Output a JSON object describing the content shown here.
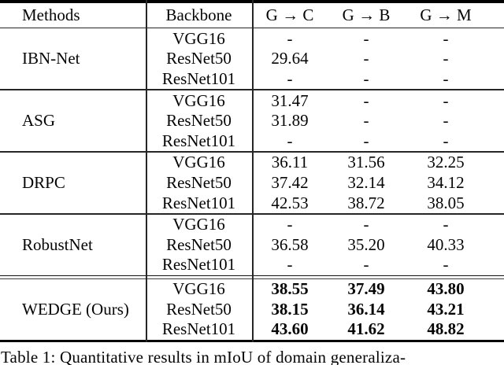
{
  "table": {
    "headers": {
      "methods": "Methods",
      "backbone": "Backbone",
      "cols": [
        "G → C",
        "G → B",
        "G → M"
      ]
    },
    "groups": [
      {
        "method": "IBN-Net",
        "bold_values": false,
        "rows": [
          {
            "backbone": "VGG16",
            "values": [
              "-",
              "-",
              "-"
            ]
          },
          {
            "backbone": "ResNet50",
            "values": [
              "29.64",
              "-",
              "-"
            ]
          },
          {
            "backbone": "ResNet101",
            "values": [
              "-",
              "-",
              "-"
            ]
          }
        ]
      },
      {
        "method": "ASG",
        "bold_values": false,
        "rows": [
          {
            "backbone": "VGG16",
            "values": [
              "31.47",
              "-",
              "-"
            ]
          },
          {
            "backbone": "ResNet50",
            "values": [
              "31.89",
              "-",
              "-"
            ]
          },
          {
            "backbone": "ResNet101",
            "values": [
              "-",
              "-",
              "-"
            ]
          }
        ]
      },
      {
        "method": "DRPC",
        "bold_values": false,
        "rows": [
          {
            "backbone": "VGG16",
            "values": [
              "36.11",
              "31.56",
              "32.25"
            ]
          },
          {
            "backbone": "ResNet50",
            "values": [
              "37.42",
              "32.14",
              "34.12"
            ]
          },
          {
            "backbone": "ResNet101",
            "values": [
              "42.53",
              "38.72",
              "38.05"
            ]
          }
        ]
      },
      {
        "method": "RobustNet",
        "bold_values": false,
        "rows": [
          {
            "backbone": "VGG16",
            "values": [
              "-",
              "-",
              "-"
            ]
          },
          {
            "backbone": "ResNet50",
            "values": [
              "36.58",
              "35.20",
              "40.33"
            ]
          },
          {
            "backbone": "ResNet101",
            "values": [
              "-",
              "-",
              "-"
            ]
          }
        ]
      },
      {
        "method": "WEDGE (Ours)",
        "bold_values": true,
        "rows": [
          {
            "backbone": "VGG16",
            "values": [
              "38.55",
              "37.49",
              "43.80"
            ]
          },
          {
            "backbone": "ResNet50",
            "values": [
              "38.15",
              "36.14",
              "43.21"
            ]
          },
          {
            "backbone": "ResNet101",
            "values": [
              "43.60",
              "41.62",
              "48.82"
            ]
          }
        ]
      }
    ]
  },
  "caption": "Table 1: Quantitative results in mIoU of domain generaliza-",
  "colors": {
    "text": "#050505",
    "rule": "#262626",
    "thick_rule": "#000000",
    "background": "#ffffff"
  }
}
